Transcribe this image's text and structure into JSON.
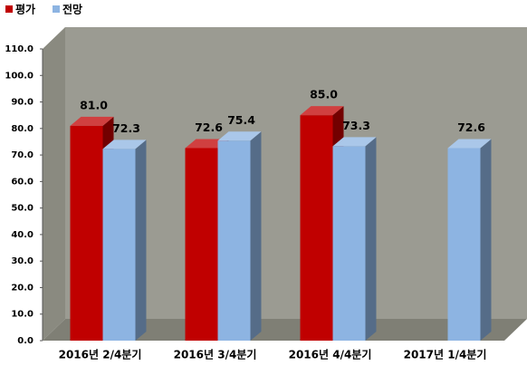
{
  "chart_data": {
    "type": "bar3d",
    "categories": [
      "2016년 2/4분기",
      "2016년 3/4분기",
      "2016년 4/4분기",
      "2017년 1/4분기"
    ],
    "series": [
      {
        "name": "평가",
        "color": "#c00000",
        "values": [
          81.0,
          72.6,
          85.0,
          null
        ],
        "value_labels": [
          "81.0",
          "72.6",
          "85.0",
          null
        ]
      },
      {
        "name": "전망",
        "color": "#8db4e2",
        "values": [
          72.3,
          75.4,
          73.3,
          72.6
        ],
        "value_labels": [
          "72.3",
          "75.4",
          "73.3",
          "72.6"
        ]
      }
    ],
    "ylim": [
      0,
      110
    ],
    "yticks": [
      {
        "value": 0,
        "label": "0.0"
      },
      {
        "value": 10,
        "label": "10.0"
      },
      {
        "value": 20,
        "label": "20.0"
      },
      {
        "value": 30,
        "label": "30.0"
      },
      {
        "value": 40,
        "label": "40.0"
      },
      {
        "value": 50,
        "label": "50.0"
      },
      {
        "value": 60,
        "label": "60.0"
      },
      {
        "value": 70,
        "label": "70.0"
      },
      {
        "value": 80,
        "label": "80.0"
      },
      {
        "value": 90,
        "label": "90.0"
      },
      {
        "value": 100,
        "label": "100.0"
      },
      {
        "value": 110,
        "label": "110.0"
      }
    ],
    "legend": "top-left"
  }
}
